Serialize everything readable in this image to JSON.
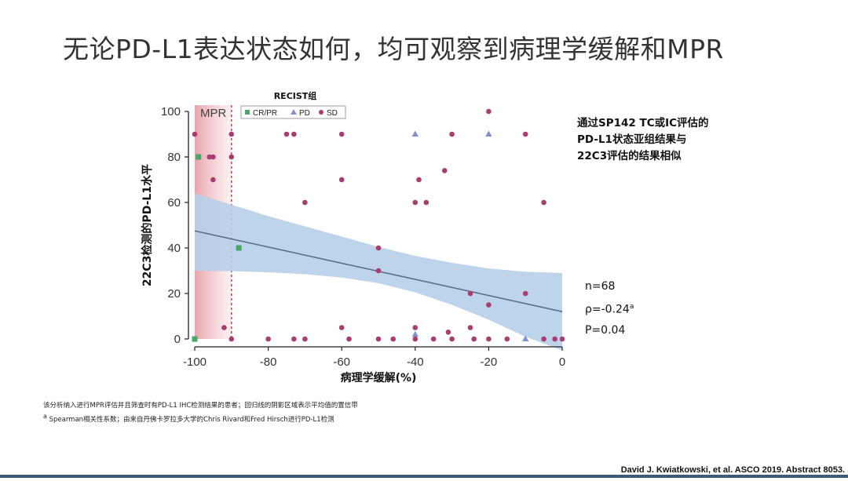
{
  "slide": {
    "title": "无论PD-L1表达状态如何，均可观察到病理学缓解和MPR",
    "side_note": "通过SP142 TC或IC评估的\nPD-L1状态亚组结果与\n22C3评估的结果相似",
    "stats": {
      "n": "n=68",
      "rho": "ρ=-0.24",
      "rho_sup": "a",
      "p": "P=0.04"
    },
    "footnote_line1": "该分析纳入进行MPR评估并且筛查时有PD-L1 IHC检测结果的患者；回归线的阴影区域表示平均值的置信带",
    "footnote_sup": "a",
    "footnote_line2": " Spearman相关性系数；由来自丹佛卡罗拉多大学的Chris Rivard和Fred Hirsch进行PD-L1检测",
    "citation": "David J. Kwiatkowski, et al. ASCO 2019. Abstract 8053."
  },
  "colors": {
    "cr_pr": "#4aa56a",
    "pd": "#8090d0",
    "sd": "#a83d6e",
    "band": "#b7cfe9",
    "line": "#5a6e8e",
    "mpr_line": "#e0364a"
  },
  "chart_data": {
    "type": "scatter",
    "xlabel": "病理学缓解(%)",
    "ylabel": "22C3检测的PD-L1水平",
    "xlim": [
      -100,
      0
    ],
    "ylim": [
      0,
      100
    ],
    "xticks": [
      -100,
      -80,
      -60,
      -40,
      -20,
      0
    ],
    "yticks": [
      0,
      20,
      40,
      60,
      80,
      100
    ],
    "legend_title": "RECIST组",
    "legend_position": "top",
    "mpr_label": "MPR",
    "mpr_threshold": -90,
    "series": [
      {
        "name": "CR/PR",
        "marker": "square",
        "points": [
          [
            -99,
            80
          ],
          [
            -88,
            40
          ],
          [
            -100,
            0
          ]
        ]
      },
      {
        "name": "PD",
        "marker": "triangle",
        "points": [
          [
            -40,
            90
          ],
          [
            -20,
            90
          ],
          [
            -40,
            2
          ],
          [
            -10,
            0
          ]
        ]
      },
      {
        "name": "SD",
        "marker": "circle",
        "points": [
          [
            -100,
            90
          ],
          [
            -90,
            90
          ],
          [
            -73,
            90
          ],
          [
            -75,
            90
          ],
          [
            -60,
            90
          ],
          [
            -30,
            90
          ],
          [
            -20,
            100
          ],
          [
            -10,
            90
          ],
          [
            -96,
            80
          ],
          [
            -95,
            80
          ],
          [
            -90,
            80
          ],
          [
            -95,
            70
          ],
          [
            -60,
            70
          ],
          [
            -39,
            70
          ],
          [
            -32,
            74
          ],
          [
            -70,
            60
          ],
          [
            -40,
            60
          ],
          [
            -37,
            60
          ],
          [
            -5,
            60
          ],
          [
            -50,
            40
          ],
          [
            -50,
            30
          ],
          [
            -25,
            20
          ],
          [
            -10,
            20
          ],
          [
            -20,
            15
          ],
          [
            -92,
            5
          ],
          [
            -60,
            5
          ],
          [
            -40,
            5
          ],
          [
            -25,
            5
          ],
          [
            -31,
            3
          ],
          [
            -90,
            0
          ],
          [
            -80,
            0
          ],
          [
            -73,
            0
          ],
          [
            -70,
            0
          ],
          [
            -58,
            0
          ],
          [
            -50,
            0
          ],
          [
            -46,
            0
          ],
          [
            -40,
            0
          ],
          [
            -35,
            0
          ],
          [
            -30,
            0
          ],
          [
            -24,
            0
          ],
          [
            -20,
            0
          ],
          [
            -15,
            0
          ],
          [
            -5,
            0
          ],
          [
            -2,
            0
          ],
          [
            0,
            0
          ]
        ]
      }
    ],
    "regression": {
      "x": [
        -100,
        0
      ],
      "y": [
        47.5,
        12
      ]
    },
    "confidence_band": {
      "x": [
        -100,
        -90,
        -80,
        -70,
        -60,
        -50,
        -40,
        -30,
        -20,
        -10,
        0
      ],
      "upper": [
        64,
        59,
        54,
        49.5,
        45,
        40.5,
        36.5,
        33.5,
        31,
        29.5,
        29
      ],
      "lower": [
        30,
        29.8,
        29.3,
        28.5,
        27,
        24.5,
        20.5,
        15,
        8.5,
        1,
        -5
      ]
    }
  }
}
